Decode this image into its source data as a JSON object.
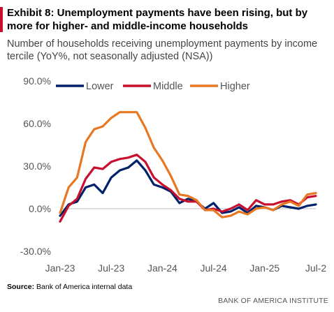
{
  "header": {
    "title": "Exhibit 8: Unemployment payments have been rising, but by more for higher- and middle-income households",
    "subtitle": "Number of households receiving unemployment payments by income tercile (YoY%, not seasonally adjusted (NSA))"
  },
  "footer": {
    "source_label": "Source:",
    "source_text": " Bank of America internal data",
    "brand": "BANK OF AMERICA INSTITUTE"
  },
  "colors": {
    "accent": "#c8102e",
    "lower": "#012169",
    "middle": "#c8102e",
    "higher": "#e87722",
    "zero_line": "#bfbfbf",
    "tick_text": "#555555"
  },
  "chart_data": {
    "type": "line",
    "title": "",
    "xlabel": "",
    "ylabel": "",
    "ylim": [
      -30,
      90
    ],
    "yticks": [
      -30,
      0,
      30,
      60,
      90
    ],
    "ytick_labels": [
      "-30.0%",
      "0.0%",
      "30.0%",
      "60.0%",
      "90.0%"
    ],
    "x": [
      "2023-01",
      "2023-02",
      "2023-03",
      "2023-04",
      "2023-05",
      "2023-06",
      "2023-07",
      "2023-08",
      "2023-09",
      "2023-10",
      "2023-11",
      "2023-12",
      "2024-01",
      "2024-02",
      "2024-03",
      "2024-04",
      "2024-05",
      "2024-06",
      "2024-07",
      "2024-08",
      "2024-09",
      "2024-10",
      "2024-11",
      "2024-12",
      "2025-01",
      "2025-02",
      "2025-03",
      "2025-04",
      "2025-05",
      "2025-06",
      "2025-07"
    ],
    "xtick_positions": [
      "2023-01",
      "2023-07",
      "2024-01",
      "2024-07",
      "2025-01",
      "2025-07"
    ],
    "xtick_labels": [
      "Jan-23",
      "Jul-23",
      "Jan-24",
      "Jul-24",
      "Jan-25",
      "Jul-2"
    ],
    "legend_position": "top",
    "grid": false,
    "series": [
      {
        "name": "Lower",
        "color_key": "lower",
        "values": [
          -5,
          3,
          5,
          15,
          17,
          11,
          22,
          27,
          29,
          34,
          27,
          17,
          15,
          12,
          4,
          7,
          5,
          0,
          4,
          -3,
          -2,
          1,
          -3,
          2,
          1,
          -1,
          2,
          1,
          0,
          2,
          3
        ]
      },
      {
        "name": "Middle",
        "color_key": "middle",
        "values": [
          -9,
          2,
          7,
          21,
          29,
          28,
          33,
          35,
          36,
          38,
          33,
          22,
          17,
          13,
          7,
          5,
          5,
          -1,
          0,
          -2,
          0,
          3,
          -1,
          6,
          3,
          3,
          5,
          6,
          3,
          8,
          9
        ]
      },
      {
        "name": "Higher",
        "color_key": "higher",
        "values": [
          -3,
          15,
          22,
          47,
          56,
          58,
          64,
          68,
          68,
          68,
          57,
          43,
          34,
          23,
          10,
          9,
          6,
          -1,
          -1,
          -6,
          -5,
          -2,
          -4,
          0,
          1,
          -1,
          3,
          5,
          2,
          10,
          11
        ]
      }
    ]
  }
}
